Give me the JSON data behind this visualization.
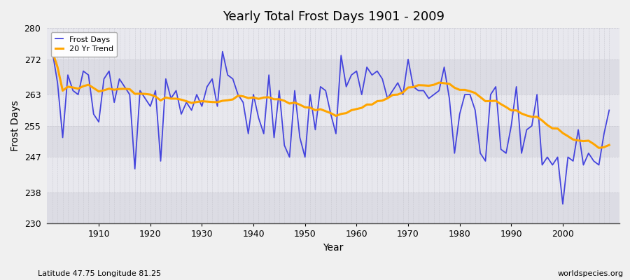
{
  "title": "Yearly Total Frost Days 1901 - 2009",
  "xlabel": "Year",
  "ylabel": "Frost Days",
  "subtitle": "Latitude 47.75 Longitude 81.25",
  "watermark": "worldspecies.org",
  "line_color": "#4444dd",
  "trend_color": "#FFA500",
  "bg_color": "#e8e8ee",
  "band_color1": "#dcdce4",
  "band_color2": "#e8e8ee",
  "grid_color": "#c8c8d0",
  "ylim": [
    230,
    280
  ],
  "yticks": [
    230,
    238,
    247,
    255,
    263,
    272,
    280
  ],
  "years": [
    1901,
    1902,
    1903,
    1904,
    1905,
    1906,
    1907,
    1908,
    1909,
    1910,
    1911,
    1912,
    1913,
    1914,
    1915,
    1916,
    1917,
    1918,
    1919,
    1920,
    1921,
    1922,
    1923,
    1924,
    1925,
    1926,
    1927,
    1928,
    1929,
    1930,
    1931,
    1932,
    1933,
    1934,
    1935,
    1936,
    1937,
    1938,
    1939,
    1940,
    1941,
    1942,
    1943,
    1944,
    1945,
    1946,
    1947,
    1948,
    1949,
    1950,
    1951,
    1952,
    1953,
    1954,
    1955,
    1956,
    1957,
    1958,
    1959,
    1960,
    1961,
    1962,
    1963,
    1964,
    1965,
    1966,
    1967,
    1968,
    1969,
    1970,
    1971,
    1972,
    1973,
    1974,
    1975,
    1976,
    1977,
    1978,
    1979,
    1980,
    1981,
    1982,
    1983,
    1984,
    1985,
    1986,
    1987,
    1988,
    1989,
    1990,
    1991,
    1992,
    1993,
    1994,
    1995,
    1996,
    1997,
    1998,
    1999,
    2000,
    2001,
    2002,
    2003,
    2004,
    2005,
    2006,
    2007,
    2008,
    2009
  ],
  "frost_days": [
    274,
    266,
    252,
    268,
    264,
    263,
    269,
    268,
    258,
    256,
    267,
    269,
    261,
    267,
    265,
    263,
    244,
    264,
    262,
    260,
    264,
    246,
    267,
    262,
    264,
    258,
    261,
    259,
    263,
    260,
    265,
    267,
    260,
    274,
    268,
    267,
    263,
    261,
    253,
    263,
    257,
    253,
    268,
    252,
    264,
    250,
    247,
    264,
    252,
    247,
    263,
    254,
    265,
    264,
    258,
    253,
    273,
    265,
    268,
    269,
    263,
    270,
    268,
    269,
    267,
    262,
    264,
    266,
    263,
    272,
    265,
    264,
    264,
    262,
    263,
    264,
    270,
    262,
    248,
    258,
    263,
    263,
    259,
    248,
    246,
    263,
    265,
    249,
    248,
    255,
    265,
    248,
    254,
    255,
    263,
    245,
    247,
    245,
    247,
    235,
    247,
    246,
    254,
    245,
    248,
    246,
    245,
    253,
    259
  ],
  "legend_frost": "Frost Days",
  "legend_trend": "20 Yr Trend"
}
